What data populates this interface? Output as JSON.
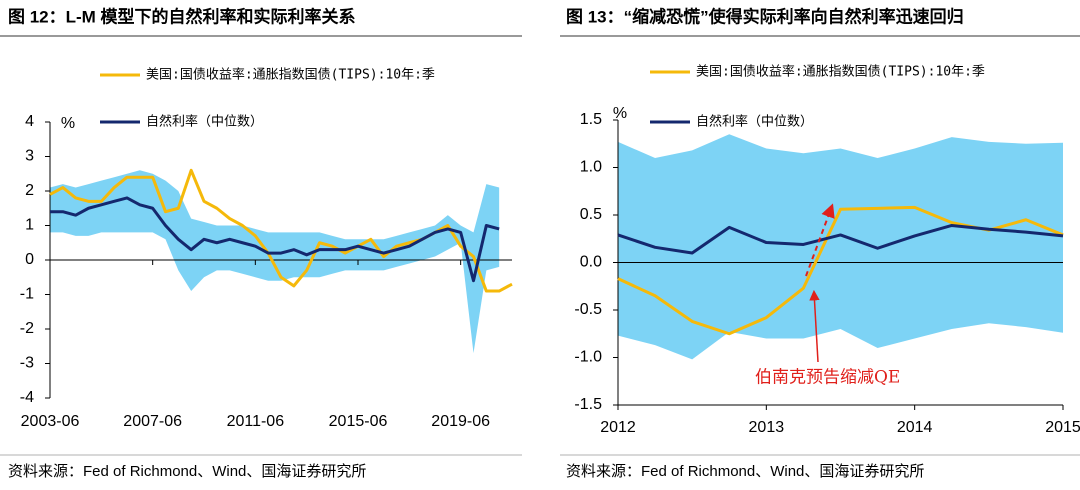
{
  "chart_data": [
    {
      "type": "line",
      "title": "图 12：L-M 模型下的自然利率和实际利率关系",
      "source": "资料来源：Fed of Richmond、Wind、国海证券研究所",
      "unit": "%",
      "x": [
        2003.5,
        2004.0,
        2004.5,
        2005.0,
        2005.5,
        2006.0,
        2006.5,
        2007.0,
        2007.5,
        2008.0,
        2008.5,
        2009.0,
        2009.5,
        2010.0,
        2010.5,
        2011.0,
        2011.5,
        2012.0,
        2012.5,
        2013.0,
        2013.5,
        2014.0,
        2014.5,
        2015.0,
        2015.5,
        2016.0,
        2016.5,
        2017.0,
        2017.5,
        2018.0,
        2018.5,
        2019.0,
        2019.5,
        2020.0,
        2020.5,
        2021.0,
        2021.5
      ],
      "xlim": [
        2003.5,
        2021.5
      ],
      "xticks": [
        {
          "value": 2003.5,
          "label": "2003-06"
        },
        {
          "value": 2007.5,
          "label": "2007-06"
        },
        {
          "value": 2011.5,
          "label": "2011-06"
        },
        {
          "value": 2015.5,
          "label": "2015-06"
        },
        {
          "value": 2019.5,
          "label": "2019-06"
        }
      ],
      "ylim": [
        -4,
        4
      ],
      "yticks": [
        -4,
        -3,
        -2,
        -1,
        0,
        1,
        2,
        3,
        4
      ],
      "band": {
        "color": "#7dd3f5",
        "upper": [
          2.1,
          2.2,
          2.1,
          2.2,
          2.3,
          2.4,
          2.5,
          2.6,
          2.5,
          2.3,
          2.0,
          1.2,
          1.1,
          1.0,
          1.0,
          1.0,
          0.9,
          0.8,
          0.8,
          0.8,
          0.8,
          0.8,
          0.7,
          0.6,
          0.6,
          0.6,
          0.6,
          0.7,
          0.8,
          0.9,
          1.0,
          1.3,
          1.0,
          0.8,
          2.2,
          2.1,
          null
        ],
        "lower": [
          0.8,
          0.8,
          0.7,
          0.7,
          0.8,
          0.8,
          0.8,
          0.8,
          0.8,
          0.6,
          -0.3,
          -0.9,
          -0.5,
          -0.3,
          -0.3,
          -0.4,
          -0.5,
          -0.6,
          -0.6,
          -0.5,
          -0.5,
          -0.5,
          -0.4,
          -0.3,
          -0.3,
          -0.3,
          -0.3,
          -0.2,
          -0.1,
          0.0,
          0.1,
          0.3,
          0.5,
          -2.7,
          -0.3,
          -0.2,
          null
        ]
      },
      "series": [
        {
          "name": "美国:国债收益率:通胀指数国债(TIPS):10年:季",
          "color": "#f5b90a",
          "values": [
            1.9,
            2.1,
            1.8,
            1.7,
            1.7,
            2.1,
            2.4,
            2.4,
            2.4,
            1.4,
            1.5,
            2.6,
            1.7,
            1.5,
            1.2,
            1.0,
            0.7,
            0.2,
            -0.5,
            -0.75,
            -0.3,
            0.5,
            0.4,
            0.2,
            0.4,
            0.6,
            0.1,
            0.4,
            0.5,
            0.6,
            0.8,
            1.0,
            0.4,
            0.1,
            -0.9,
            -0.9,
            -0.7
          ]
        },
        {
          "name": "自然利率（中位数）",
          "color": "#14286e",
          "values": [
            1.4,
            1.4,
            1.3,
            1.5,
            1.6,
            1.7,
            1.8,
            1.6,
            1.5,
            1.0,
            0.6,
            0.3,
            0.6,
            0.5,
            0.6,
            0.5,
            0.4,
            0.2,
            0.2,
            0.3,
            0.15,
            0.3,
            0.3,
            0.3,
            0.4,
            0.3,
            0.2,
            0.3,
            0.4,
            0.6,
            0.8,
            0.9,
            0.8,
            -0.6,
            1.0,
            0.9,
            null
          ]
        }
      ]
    },
    {
      "type": "line",
      "title": "图 13：“缩减恐慌”使得实际利率向自然利率迅速回归",
      "source": "资料来源：Fed of Richmond、Wind、国海证券研究所",
      "unit": "%",
      "annotation": "伯南克预告缩减QE",
      "x": [
        2012.0,
        2012.25,
        2012.5,
        2012.75,
        2013.0,
        2013.25,
        2013.5,
        2013.75,
        2014.0,
        2014.25,
        2014.5,
        2014.75,
        2015.0
      ],
      "xlim": [
        2012,
        2015
      ],
      "xticks": [
        2012,
        2013,
        2014,
        2015
      ],
      "ylim": [
        -1.5,
        1.5
      ],
      "yticks": [
        {
          "value": -1.5,
          "label": "-1.5"
        },
        {
          "value": -1,
          "label": "-1.0"
        },
        {
          "value": -0.5,
          "label": "-0.5"
        },
        {
          "value": 0,
          "label": "0.0"
        },
        0.5,
        {
          "value": 1,
          "label": "1.0"
        },
        1.5
      ],
      "band": {
        "color": "#7dd3f5",
        "upper": [
          1.27,
          1.1,
          1.18,
          1.35,
          1.2,
          1.15,
          1.2,
          1.1,
          1.2,
          1.32,
          1.27,
          1.25,
          1.26
        ],
        "lower": [
          -0.77,
          -0.87,
          -1.02,
          -0.73,
          -0.8,
          -0.8,
          -0.7,
          -0.9,
          -0.8,
          -0.7,
          -0.64,
          -0.68,
          -0.74
        ]
      },
      "series": [
        {
          "name": "美国:国债收益率:通胀指数国债(TIPS):10年:季",
          "color": "#f5b90a",
          "values": [
            -0.17,
            -0.35,
            -0.62,
            -0.75,
            -0.58,
            -0.27,
            0.56,
            0.57,
            0.58,
            0.42,
            0.34,
            0.45,
            0.29
          ]
        },
        {
          "name": "自然利率（中位数）",
          "color": "#14286e",
          "values": [
            0.29,
            0.16,
            0.1,
            0.37,
            0.21,
            0.19,
            0.29,
            0.15,
            0.28,
            0.39,
            0.35,
            0.32,
            0.28
          ]
        }
      ]
    }
  ]
}
